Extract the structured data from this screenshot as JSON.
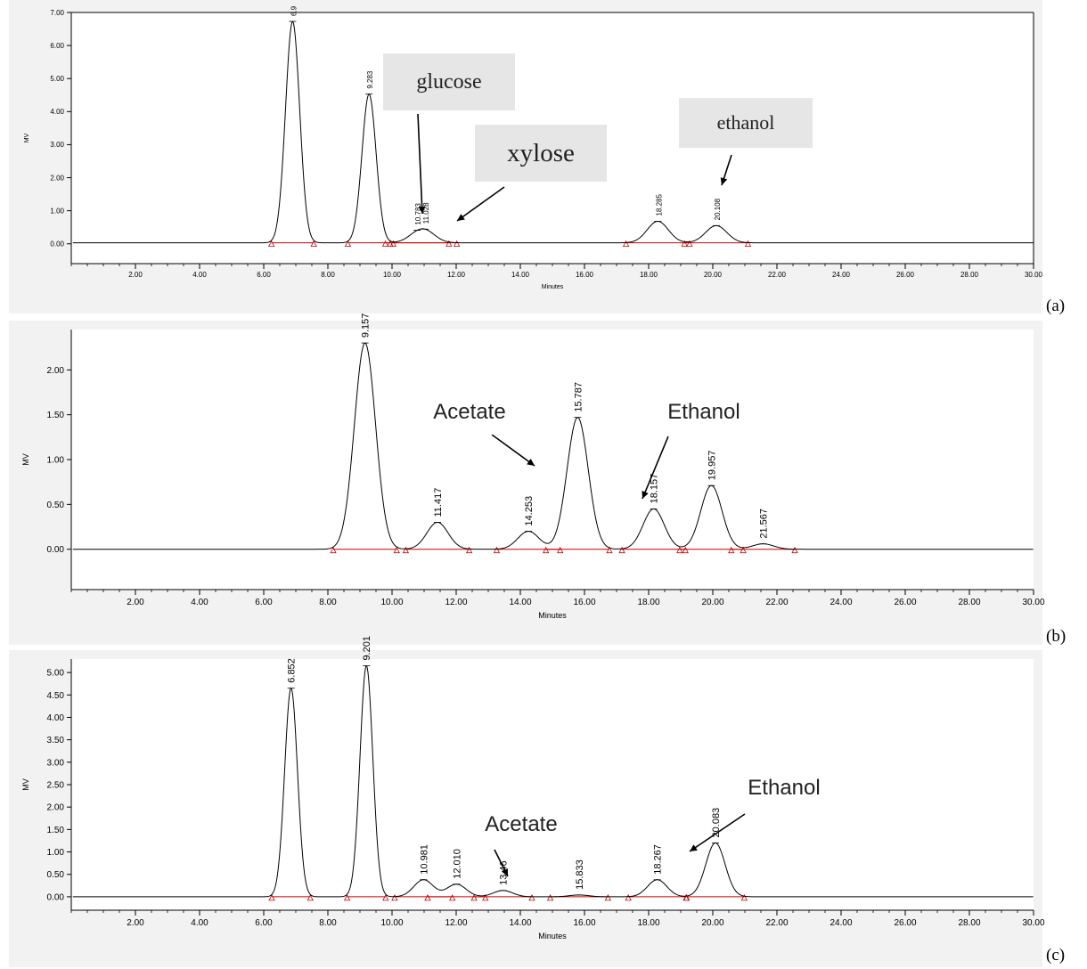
{
  "panels": [
    {
      "label": "(a)"
    },
    {
      "label": "(b)"
    },
    {
      "label": "(c)"
    }
  ],
  "annotations": {
    "a_glucose": "glucose",
    "a_xylose": "xylose",
    "a_ethanol": "ethanol",
    "b_acetate": "Acetate",
    "b_ethanol": "Ethanol",
    "c_acetate": "Acetate",
    "c_ethanol": "Ethanol"
  },
  "colors": {
    "trace": "#000000",
    "integration": "#cc0000",
    "annotation_bg": "#e6e6e6"
  },
  "chart_data": [
    {
      "type": "line",
      "panel": "(a)",
      "xlabel": "Minutes",
      "ylabel": "MV",
      "xlim": [
        0,
        30
      ],
      "ylim": [
        -0.6,
        7.0
      ],
      "xticks": [
        2,
        4,
        6,
        8,
        10,
        12,
        14,
        16,
        18,
        20,
        22,
        24,
        26,
        28,
        30
      ],
      "xtick_labels": [
        "2.00",
        "4.00",
        "6.00",
        "8.00",
        "10.00",
        "12.00",
        "14.00",
        "16.00",
        "18.00",
        "20.00",
        "22.00",
        "24.00",
        "26.00",
        "28.00",
        "30.00"
      ],
      "yticks": [
        0,
        1,
        2,
        3,
        4,
        5,
        6,
        7
      ],
      "ytick_labels": [
        "0.00",
        "1.00",
        "2.00",
        "3.00",
        "4.00",
        "5.00",
        "6.00",
        "7.00"
      ],
      "baseline": 0.03,
      "peaks": [
        {
          "rt": 6.9,
          "height": 6.7,
          "label": "6.9"
        },
        {
          "rt": 9.283,
          "height": 4.5,
          "label": "9.283"
        },
        {
          "rt": 10.783,
          "height": 0.15,
          "label": "10.783"
        },
        {
          "rt": 11.028,
          "height": 0.3,
          "label": "11.028"
        },
        {
          "rt": 18.285,
          "height": 0.65,
          "label": "18.285"
        },
        {
          "rt": 20.108,
          "height": 0.52,
          "label": "20.108"
        }
      ]
    },
    {
      "type": "line",
      "panel": "(b)",
      "xlabel": "Minutes",
      "ylabel": "MV",
      "xlim": [
        0,
        30
      ],
      "ylim": [
        -0.45,
        2.45
      ],
      "xticks": [
        2,
        4,
        6,
        8,
        10,
        12,
        14,
        16,
        18,
        20,
        22,
        24,
        26,
        28,
        30
      ],
      "xtick_labels": [
        "2.00",
        "4.00",
        "6.00",
        "8.00",
        "10.00",
        "12.00",
        "14.00",
        "16.00",
        "18.00",
        "20.00",
        "22.00",
        "24.00",
        "26.00",
        "28.00",
        "30.00"
      ],
      "yticks": [
        0,
        0.5,
        1.0,
        1.5,
        2.0
      ],
      "ytick_labels": [
        "0.00",
        "0.50",
        "1.00",
        "1.50",
        "2.00"
      ],
      "baseline": 0.0,
      "peaks": [
        {
          "rt": 9.157,
          "height": 2.3,
          "label": "9.157"
        },
        {
          "rt": 11.417,
          "height": 0.3,
          "label": "11.417"
        },
        {
          "rt": 14.253,
          "height": 0.2,
          "label": "14.253"
        },
        {
          "rt": 15.787,
          "height": 1.47,
          "label": "15.787"
        },
        {
          "rt": 18.157,
          "height": 0.45,
          "label": "18.157"
        },
        {
          "rt": 19.957,
          "height": 0.71,
          "label": "19.957"
        },
        {
          "rt": 21.567,
          "height": 0.06,
          "label": "21.567"
        }
      ]
    },
    {
      "type": "line",
      "panel": "(c)",
      "xlabel": "Minutes",
      "ylabel": "MV",
      "xlim": [
        0,
        30
      ],
      "ylim": [
        -0.3,
        5.3
      ],
      "xticks": [
        2,
        4,
        6,
        8,
        10,
        12,
        14,
        16,
        18,
        20,
        22,
        24,
        26,
        28,
        30
      ],
      "xtick_labels": [
        "2.00",
        "4.00",
        "6.00",
        "8.00",
        "10.00",
        "12.00",
        "14.00",
        "16.00",
        "18.00",
        "20.00",
        "22.00",
        "24.00",
        "26.00",
        "28.00",
        "30.00"
      ],
      "yticks": [
        0,
        0.5,
        1.0,
        1.5,
        2.0,
        2.5,
        3.0,
        3.5,
        4.0,
        4.5,
        5.0
      ],
      "ytick_labels": [
        "0.00",
        "0.50",
        "1.00",
        "1.50",
        "2.00",
        "2.50",
        "3.00",
        "3.50",
        "4.00",
        "4.50",
        "5.00"
      ],
      "baseline": 0.0,
      "peaks": [
        {
          "rt": 6.852,
          "height": 4.65,
          "label": "6.852"
        },
        {
          "rt": 9.201,
          "height": 5.15,
          "label": "9.201"
        },
        {
          "rt": 10.981,
          "height": 0.38,
          "label": "10.981"
        },
        {
          "rt": 12.01,
          "height": 0.28,
          "label": "12.010"
        },
        {
          "rt": 13.46,
          "height": 0.14,
          "label": "13.46"
        },
        {
          "rt": 15.833,
          "height": 0.04,
          "label": "15.833"
        },
        {
          "rt": 18.267,
          "height": 0.38,
          "label": "18.267"
        },
        {
          "rt": 20.083,
          "height": 1.2,
          "label": "20.083"
        }
      ]
    }
  ]
}
